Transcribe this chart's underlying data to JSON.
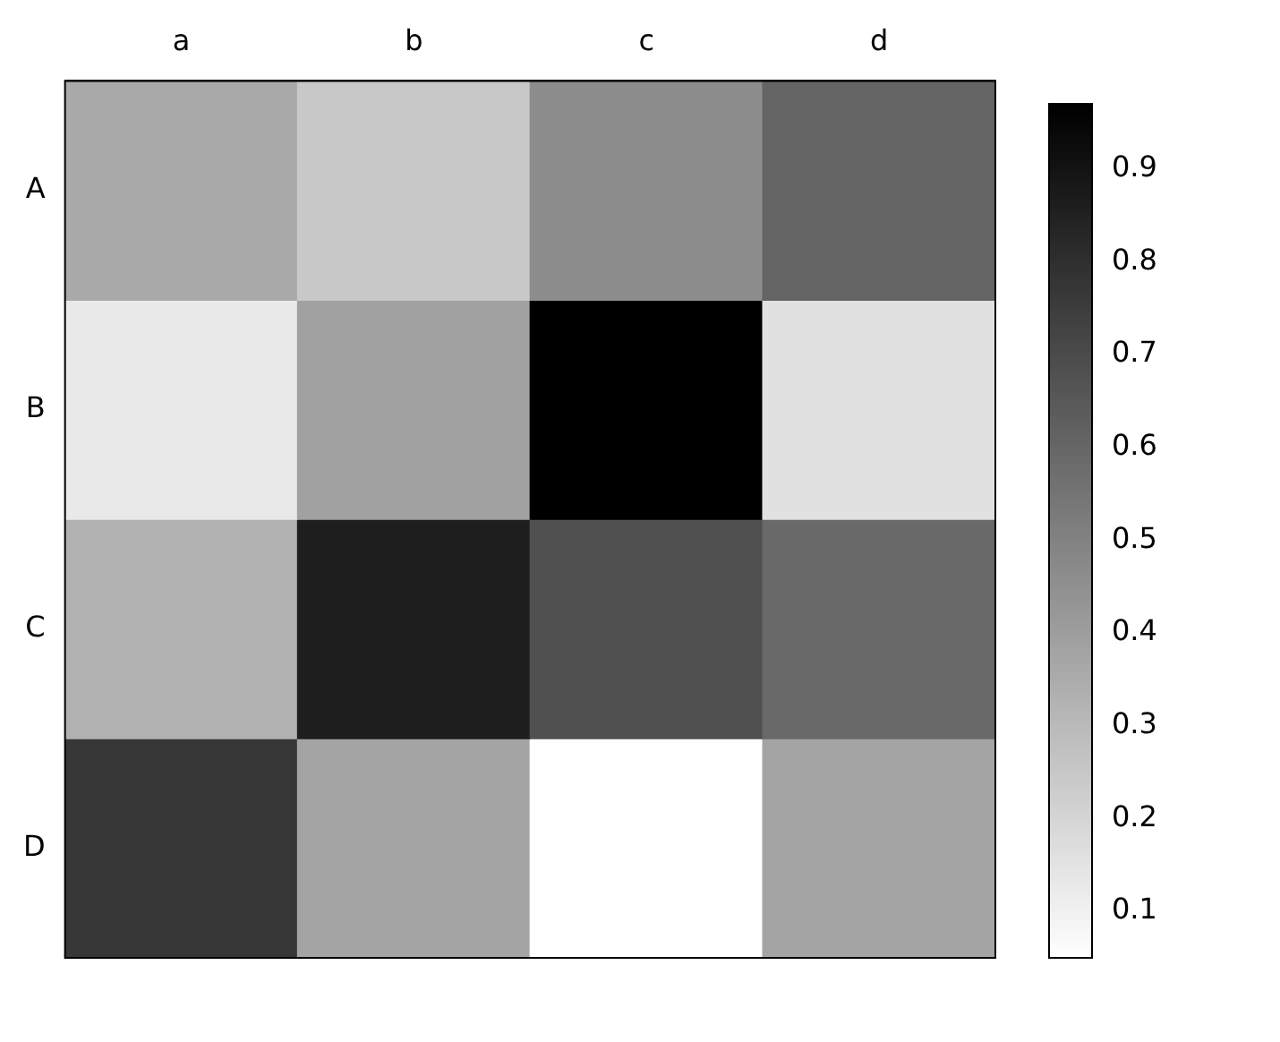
{
  "chart_data": {
    "type": "heatmap",
    "categories": [
      "a",
      "b",
      "c",
      "d"
    ],
    "y_categories": [
      "A",
      "B",
      "C",
      "D"
    ],
    "cells": [
      [
        0.36,
        0.25,
        0.46,
        0.61
      ],
      [
        0.13,
        0.39,
        0.97,
        0.16
      ],
      [
        0.33,
        0.86,
        0.68,
        0.59
      ],
      [
        0.77,
        0.38,
        0.05,
        0.38
      ]
    ],
    "clim": [
      0.05,
      0.97
    ],
    "cticks": [
      0.1,
      0.2,
      0.3,
      0.4,
      0.5,
      0.6,
      0.7,
      0.8,
      0.9
    ]
  }
}
